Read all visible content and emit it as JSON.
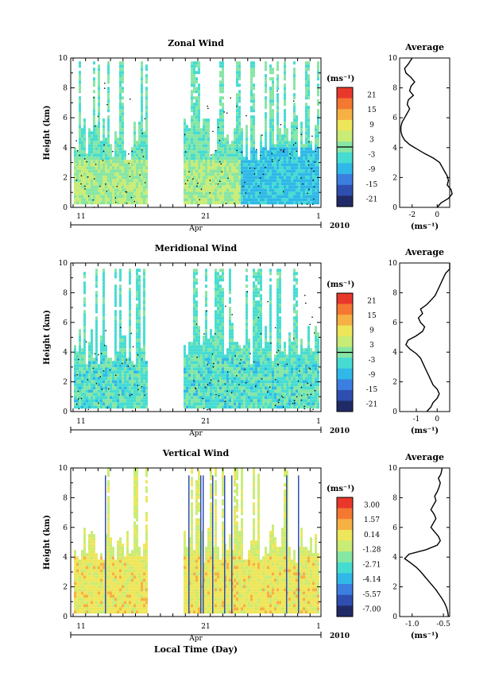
{
  "colors": {
    "colormap": [
      "#202a66",
      "#2f4fb0",
      "#3c7fe0",
      "#2fb8e8",
      "#46dcd2",
      "#86e6a4",
      "#c8ec76",
      "#eee65a",
      "#f6b043",
      "#f47832",
      "#e8382c"
    ]
  },
  "chart_data": [
    {
      "type": "heatmap",
      "name": "zonal",
      "title": "Zonal Wind",
      "ylabel": "Height (km)",
      "ylim": [
        0,
        10
      ],
      "yticks": [
        "0",
        "2",
        "4",
        "6",
        "8",
        "10"
      ],
      "xticks": [
        "11",
        "21",
        "1"
      ],
      "xlabel_month": "Apr",
      "year_label": "2010",
      "colorbar": {
        "unit_label": "(ms⁻¹)",
        "ticks": [
          "21",
          "15",
          "9",
          "3",
          "-3",
          "-9",
          "-15",
          "-21"
        ],
        "zero_line": true
      },
      "profile": {
        "title": "Average",
        "xlabel": "(ms⁻¹)",
        "xticks": [
          "-2",
          "0"
        ],
        "xlim": [
          -3.0,
          1.0
        ],
        "height": [
          0.0,
          0.3,
          0.6,
          0.9,
          1.2,
          1.5,
          1.8,
          2.1,
          2.4,
          2.7,
          3.0,
          3.3,
          3.6,
          3.9,
          4.2,
          4.5,
          4.8,
          5.1,
          5.4,
          5.7,
          6.0,
          6.3,
          6.6,
          6.9,
          7.2,
          7.5,
          7.8,
          8.1,
          8.4,
          8.7,
          9.0,
          9.3,
          9.6,
          10.0
        ],
        "values": [
          0.0,
          0.3,
          0.9,
          1.2,
          1.1,
          0.8,
          0.9,
          0.8,
          0.6,
          0.4,
          0.2,
          -0.3,
          -1.0,
          -1.6,
          -2.2,
          -2.6,
          -2.8,
          -2.9,
          -2.9,
          -2.8,
          -2.6,
          -2.4,
          -2.2,
          -2.4,
          -2.3,
          -1.9,
          -2.2,
          -2.1,
          -1.8,
          -2.1,
          -2.5,
          -2.6,
          -2.3,
          -2.0
        ]
      }
    },
    {
      "type": "heatmap",
      "name": "meridional",
      "title": "Meridional Wind",
      "ylabel": "Height (km)",
      "ylim": [
        0,
        10
      ],
      "yticks": [
        "0",
        "2",
        "4",
        "6",
        "8",
        "10"
      ],
      "xticks": [
        "11",
        "21",
        "1"
      ],
      "xlabel_month": "Apr",
      "year_label": "2010",
      "colorbar": {
        "unit_label": "(ms⁻¹)",
        "ticks": [
          "21",
          "15",
          "9",
          "3",
          "-3",
          "-9",
          "-15",
          "-21"
        ],
        "zero_line": true
      },
      "profile": {
        "title": "Average",
        "xlabel": "(ms⁻¹)",
        "xticks": [
          "-1",
          "0"
        ],
        "xlim": [
          -1.8,
          0.6
        ],
        "height": [
          0.0,
          0.3,
          0.6,
          0.9,
          1.2,
          1.5,
          1.8,
          2.1,
          2.4,
          2.7,
          3.0,
          3.3,
          3.6,
          3.9,
          4.2,
          4.5,
          4.8,
          5.1,
          5.4,
          5.7,
          6.0,
          6.3,
          6.6,
          6.9,
          7.2,
          7.5,
          7.8,
          8.1,
          8.4,
          8.7,
          9.0,
          9.3,
          9.6,
          10.0
        ],
        "values": [
          -0.5,
          -0.3,
          -0.2,
          0.0,
          0.1,
          0.0,
          -0.2,
          -0.3,
          -0.4,
          -0.5,
          -0.6,
          -0.7,
          -0.8,
          -1.0,
          -1.3,
          -1.5,
          -1.4,
          -1.0,
          -0.7,
          -0.6,
          -0.8,
          -0.9,
          -0.7,
          -0.8,
          -0.5,
          -0.3,
          -0.1,
          0.0,
          0.1,
          0.2,
          0.3,
          0.4,
          0.6,
          0.6
        ]
      }
    },
    {
      "type": "heatmap",
      "name": "vertical",
      "title": "Vertical Wind",
      "ylabel": "Height (km)",
      "ylim": [
        0,
        10
      ],
      "yticks": [
        "0",
        "2",
        "4",
        "6",
        "8",
        "10"
      ],
      "xticks": [
        "11",
        "21",
        "1"
      ],
      "xlabel_month": "Apr",
      "year_label": "2010",
      "xlabel": "Local Time (Day)",
      "colorbar": {
        "unit_label": "(ms⁻¹)",
        "ticks": [
          "3.00",
          "1.57",
          "0.14",
          "-1.28",
          "-2.71",
          "-4.14",
          "-5.57",
          "-7.00"
        ],
        "zero_line": false
      },
      "profile": {
        "title": "Average",
        "xlabel": "(ms⁻¹)",
        "xticks": [
          "-1.0",
          "-0.5"
        ],
        "xlim": [
          -1.2,
          -0.4
        ],
        "height": [
          0.0,
          0.3,
          0.6,
          0.9,
          1.2,
          1.5,
          1.8,
          2.1,
          2.4,
          2.7,
          3.0,
          3.3,
          3.6,
          3.9,
          4.2,
          4.5,
          4.8,
          5.1,
          5.4,
          5.7,
          6.0,
          6.3,
          6.6,
          6.9,
          7.2,
          7.5,
          7.8,
          8.1,
          8.4,
          8.7,
          9.0,
          9.3,
          9.6,
          10.0
        ],
        "values": [
          -0.42,
          -0.43,
          -0.45,
          -0.48,
          -0.52,
          -0.57,
          -0.62,
          -0.68,
          -0.74,
          -0.8,
          -0.86,
          -0.93,
          -1.02,
          -1.12,
          -1.05,
          -0.78,
          -0.6,
          -0.55,
          -0.58,
          -0.64,
          -0.7,
          -0.66,
          -0.62,
          -0.65,
          -0.7,
          -0.66,
          -0.62,
          -0.64,
          -0.6,
          -0.57,
          -0.55,
          -0.58,
          -0.54,
          -0.52
        ]
      }
    }
  ]
}
